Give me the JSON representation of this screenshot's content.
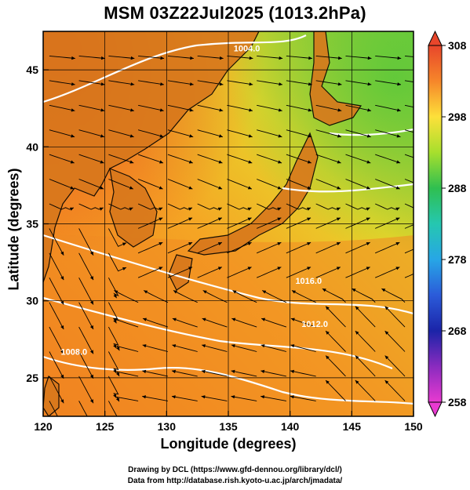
{
  "title": "MSM 03Z22Jul2025 (1013.2hPa)",
  "axes": {
    "xlabel": "Longitude (degrees)",
    "ylabel": "Latitude  (degrees)",
    "x_ticks": [
      "120",
      "125",
      "130",
      "135",
      "140",
      "145",
      "150"
    ],
    "y_ticks": [
      "25",
      "30",
      "35",
      "40",
      "45"
    ],
    "xlim": [
      120,
      150
    ],
    "ylim": [
      22.5,
      47.5
    ],
    "grid": true
  },
  "colorbar": {
    "ticks": [
      "308",
      "298",
      "288",
      "278",
      "268",
      "258"
    ],
    "range": [
      258,
      308
    ]
  },
  "credits": {
    "line1": "Drawing by DCL (https://www.gfd-dennou.org/library/dcl/)",
    "line2": "Data from http://database.rish.kyoto-u.ac.jp/arch/jmadata/"
  },
  "isobar_labels": [
    {
      "text": "1004.0",
      "lon": 136.5,
      "lat": 46.2
    },
    {
      "text": "1012.0",
      "lon": 142.0,
      "lat": 28.3
    },
    {
      "text": "1008.0",
      "lon": 122.5,
      "lat": 26.5
    },
    {
      "text": "1016.0",
      "lon": 141.5,
      "lat": 31.1
    }
  ],
  "colors": {
    "warm": "#f06a1e",
    "mid": "#e8d42a",
    "cool": "#7fcc3a",
    "isobar": "#ffffff",
    "land": "#b85a12"
  },
  "map_data": {
    "type": "temperature-and-streamlines",
    "field_unit": "K",
    "region": "East Asia / Japan"
  }
}
